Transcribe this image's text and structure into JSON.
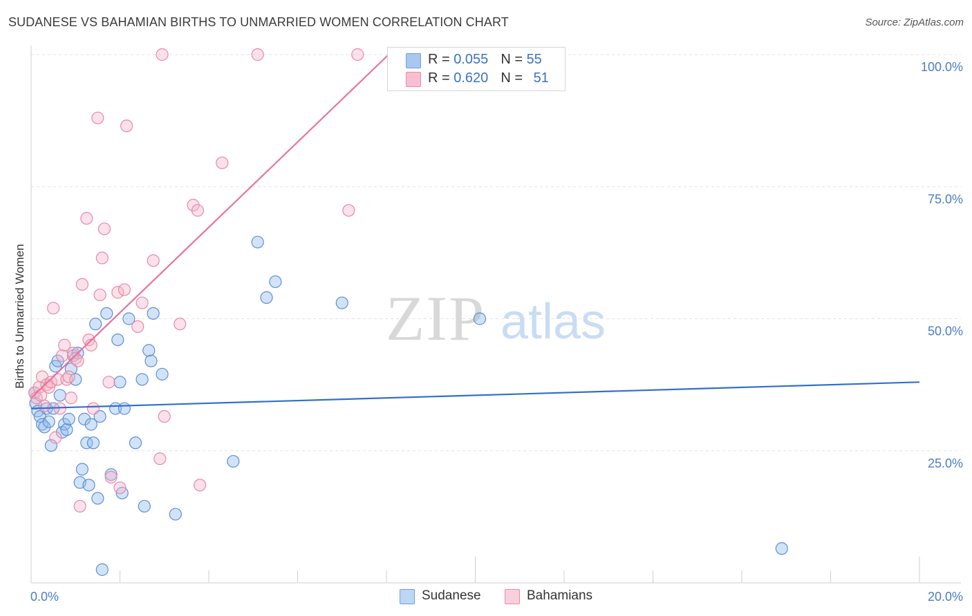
{
  "title": "SUDANESE VS BAHAMIAN BIRTHS TO UNMARRIED WOMEN CORRELATION CHART",
  "source": "Source: ZipAtlas.com",
  "watermark": {
    "zip": "ZIP",
    "atlas": "atlas"
  },
  "legend": {
    "rows": [
      {
        "r_label": "R = ",
        "r_value": "0.055",
        "n_label": "N = ",
        "n_value": "55",
        "color": "#a8c8f0",
        "border": "#6f9fdc"
      },
      {
        "r_label": "R = ",
        "r_value": "0.620",
        "n_label": "N = ",
        "n_value": "51",
        "color": "#f7bfd0",
        "border": "#e88aa8"
      }
    ]
  },
  "bottom_legend": [
    {
      "label": "Sudanese",
      "color": "#bcd6f5",
      "border": "#6f9fdc"
    },
    {
      "label": "Bahamians",
      "color": "#f9cfdc",
      "border": "#e88aa8"
    }
  ],
  "chart_data": {
    "type": "scatter",
    "title": "SUDANESE VS BAHAMIAN BIRTHS TO UNMARRIED WOMEN CORRELATION CHART",
    "xlabel": "",
    "ylabel": "Births to Unmarried Women",
    "xlim": [
      0,
      20
    ],
    "ylim": [
      0,
      100
    ],
    "x_tick_labels": [
      "0.0%",
      "20.0%"
    ],
    "y_ticks": [
      25,
      50,
      75,
      100
    ],
    "y_tick_labels": [
      "25.0%",
      "50.0%",
      "75.0%",
      "100.0%"
    ],
    "series": [
      {
        "name": "Sudanese",
        "color": "#8fb8ea",
        "stroke": "#5d8fd6",
        "line_color": "#2f6fcc",
        "trend": {
          "x": [
            0,
            20
          ],
          "y": [
            33.0,
            38.0
          ]
        },
        "points": [
          [
            0.1,
            34.0
          ],
          [
            0.15,
            32.5
          ],
          [
            0.2,
            31.5
          ],
          [
            0.25,
            30.0
          ],
          [
            0.3,
            29.5
          ],
          [
            0.35,
            33.0
          ],
          [
            0.4,
            30.5
          ],
          [
            0.45,
            26.0
          ],
          [
            0.55,
            41.0
          ],
          [
            0.6,
            42.0
          ],
          [
            0.65,
            35.5
          ],
          [
            0.7,
            28.5
          ],
          [
            0.75,
            30.0
          ],
          [
            0.8,
            29.0
          ],
          [
            0.85,
            31.0
          ],
          [
            0.9,
            40.5
          ],
          [
            0.95,
            43.0
          ],
          [
            1.0,
            38.5
          ],
          [
            1.05,
            43.5
          ],
          [
            1.1,
            19.0
          ],
          [
            1.15,
            21.5
          ],
          [
            1.2,
            31.0
          ],
          [
            1.25,
            26.5
          ],
          [
            1.3,
            18.5
          ],
          [
            1.35,
            30.0
          ],
          [
            1.4,
            26.5
          ],
          [
            1.45,
            49.0
          ],
          [
            1.5,
            16.0
          ],
          [
            1.55,
            31.5
          ],
          [
            1.6,
            2.5
          ],
          [
            1.7,
            51.0
          ],
          [
            1.8,
            20.5
          ],
          [
            1.9,
            33.0
          ],
          [
            1.95,
            46.0
          ],
          [
            2.0,
            38.0
          ],
          [
            2.05,
            17.0
          ],
          [
            2.1,
            33.0
          ],
          [
            2.2,
            50.0
          ],
          [
            2.35,
            26.5
          ],
          [
            2.5,
            38.5
          ],
          [
            2.55,
            14.5
          ],
          [
            2.65,
            44.0
          ],
          [
            2.7,
            42.0
          ],
          [
            2.75,
            51.0
          ],
          [
            2.95,
            39.5
          ],
          [
            3.25,
            13.0
          ],
          [
            4.55,
            23.0
          ],
          [
            5.1,
            64.5
          ],
          [
            5.3,
            54.0
          ],
          [
            5.5,
            57.0
          ],
          [
            7.0,
            53.0
          ],
          [
            10.1,
            50.0
          ],
          [
            16.9,
            6.5
          ],
          [
            0.08,
            36.0
          ],
          [
            0.5,
            33.0
          ]
        ]
      },
      {
        "name": "Bahamians",
        "color": "#f5b3c8",
        "stroke": "#e68aa6",
        "line_color": "#e8739a",
        "trend": {
          "x": [
            0,
            8.05
          ],
          "y": [
            35.0,
            100.0
          ]
        },
        "points": [
          [
            0.08,
            36.0
          ],
          [
            0.12,
            35.0
          ],
          [
            0.18,
            37.0
          ],
          [
            0.22,
            35.5
          ],
          [
            0.25,
            39.0
          ],
          [
            0.3,
            33.5
          ],
          [
            0.35,
            37.5
          ],
          [
            0.4,
            37.0
          ],
          [
            0.45,
            38.0
          ],
          [
            0.5,
            52.0
          ],
          [
            0.55,
            27.5
          ],
          [
            0.6,
            38.5
          ],
          [
            0.65,
            33.0
          ],
          [
            0.7,
            43.0
          ],
          [
            0.75,
            45.0
          ],
          [
            0.8,
            38.5
          ],
          [
            0.85,
            39.0
          ],
          [
            0.9,
            35.0
          ],
          [
            0.95,
            43.5
          ],
          [
            1.0,
            42.5
          ],
          [
            1.05,
            42.0
          ],
          [
            1.1,
            14.5
          ],
          [
            1.15,
            56.5
          ],
          [
            1.25,
            69.0
          ],
          [
            1.3,
            46.0
          ],
          [
            1.35,
            45.0
          ],
          [
            1.4,
            33.0
          ],
          [
            1.5,
            88.0
          ],
          [
            1.55,
            54.5
          ],
          [
            1.6,
            61.5
          ],
          [
            1.65,
            67.0
          ],
          [
            1.75,
            38.0
          ],
          [
            1.8,
            20.0
          ],
          [
            1.95,
            55.0
          ],
          [
            2.0,
            18.0
          ],
          [
            2.1,
            55.5
          ],
          [
            2.15,
            86.5
          ],
          [
            2.4,
            48.5
          ],
          [
            2.5,
            53.0
          ],
          [
            2.75,
            61.0
          ],
          [
            2.9,
            23.5
          ],
          [
            2.95,
            100.0
          ],
          [
            3.0,
            31.5
          ],
          [
            3.35,
            49.0
          ],
          [
            3.65,
            71.5
          ],
          [
            3.75,
            70.5
          ],
          [
            3.8,
            18.5
          ],
          [
            4.3,
            79.5
          ],
          [
            5.1,
            100.0
          ],
          [
            7.15,
            70.5
          ],
          [
            7.35,
            100.0
          ]
        ]
      }
    ]
  }
}
